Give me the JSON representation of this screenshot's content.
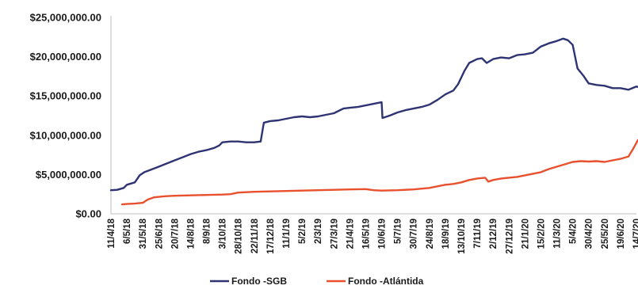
{
  "chart_data": {
    "type": "line",
    "title": "",
    "xlabel": "",
    "ylabel": "",
    "ylim": [
      0,
      25000000
    ],
    "y_ticks": [
      "$0.00",
      "$5,000,000.00",
      "$10,000,000.00",
      "$15,000,000.00",
      "$20,000,000.00",
      "$25,000,000.00"
    ],
    "x_ticks": [
      "11/4/18",
      "6/5/18",
      "31/5/18",
      "25/6/18",
      "20/7/18",
      "14/8/18",
      "8/9/18",
      "3/10/18",
      "28/10/18",
      "22/11/18",
      "17/12/18",
      "11/1/19",
      "5/2/19",
      "2/3/19",
      "27/3/19",
      "21/4/19",
      "16/5/19",
      "10/6/19",
      "5/7/19",
      "30/7/19",
      "24/8/19",
      "18/9/19",
      "13/10/19",
      "7/11/19",
      "2/12/19",
      "27/12/19",
      "21/1/20",
      "15/2/20",
      "11/3/20",
      "5/4/20",
      "30/4/20",
      "25/5/20",
      "19/6/20",
      "14/7/20"
    ],
    "grid": false,
    "legend_position": "bottom",
    "series": [
      {
        "name": "Fondo -SGB",
        "color": "#2e3473",
        "points": [
          [
            0,
            3000000
          ],
          [
            0.4,
            3050000
          ],
          [
            0.8,
            3300000
          ],
          [
            1.0,
            3700000
          ],
          [
            1.5,
            4000000
          ],
          [
            1.8,
            4900000
          ],
          [
            2.1,
            5300000
          ],
          [
            2.5,
            5600000
          ],
          [
            3.0,
            6000000
          ],
          [
            3.5,
            6400000
          ],
          [
            4.0,
            6800000
          ],
          [
            4.5,
            7200000
          ],
          [
            5.0,
            7600000
          ],
          [
            5.5,
            7900000
          ],
          [
            6.0,
            8100000
          ],
          [
            6.5,
            8400000
          ],
          [
            6.8,
            8700000
          ],
          [
            7.0,
            9100000
          ],
          [
            7.5,
            9200000
          ],
          [
            8.0,
            9200000
          ],
          [
            8.5,
            9100000
          ],
          [
            9.0,
            9100000
          ],
          [
            9.4,
            9200000
          ],
          [
            9.6,
            11600000
          ],
          [
            10.0,
            11800000
          ],
          [
            10.5,
            11900000
          ],
          [
            11.0,
            12100000
          ],
          [
            11.5,
            12300000
          ],
          [
            12.0,
            12400000
          ],
          [
            12.5,
            12300000
          ],
          [
            13.0,
            12400000
          ],
          [
            13.5,
            12600000
          ],
          [
            14.0,
            12800000
          ],
          [
            14.3,
            13100000
          ],
          [
            14.6,
            13400000
          ],
          [
            15.0,
            13500000
          ],
          [
            15.5,
            13600000
          ],
          [
            16.0,
            13800000
          ],
          [
            16.5,
            14000000
          ],
          [
            17.0,
            14200000
          ],
          [
            17.05,
            12200000
          ],
          [
            17.5,
            12500000
          ],
          [
            18.0,
            12900000
          ],
          [
            18.5,
            13200000
          ],
          [
            19.0,
            13400000
          ],
          [
            19.5,
            13600000
          ],
          [
            20.0,
            13900000
          ],
          [
            20.5,
            14500000
          ],
          [
            21.0,
            15200000
          ],
          [
            21.5,
            15700000
          ],
          [
            21.8,
            16500000
          ],
          [
            22.2,
            18200000
          ],
          [
            22.5,
            19200000
          ],
          [
            23.0,
            19700000
          ],
          [
            23.3,
            19800000
          ],
          [
            23.6,
            19200000
          ],
          [
            24.0,
            19700000
          ],
          [
            24.5,
            19900000
          ],
          [
            25.0,
            19800000
          ],
          [
            25.5,
            20200000
          ],
          [
            26.0,
            20300000
          ],
          [
            26.5,
            20500000
          ],
          [
            27.0,
            21300000
          ],
          [
            27.5,
            21700000
          ],
          [
            28.0,
            22000000
          ],
          [
            28.4,
            22300000
          ],
          [
            28.7,
            22100000
          ],
          [
            29.0,
            21500000
          ],
          [
            29.3,
            18500000
          ],
          [
            29.5,
            18000000
          ],
          [
            29.7,
            17500000
          ],
          [
            30.0,
            16600000
          ],
          [
            30.5,
            16400000
          ],
          [
            31.0,
            16300000
          ],
          [
            31.5,
            16000000
          ],
          [
            32.0,
            16000000
          ],
          [
            32.5,
            15800000
          ],
          [
            33.0,
            16200000
          ],
          [
            33.5,
            15900000
          ],
          [
            34.0,
            15900000
          ]
        ]
      },
      {
        "name": "Fondo -Atlántida",
        "color": "#e8502e",
        "points": [
          [
            0.7,
            1200000
          ],
          [
            1.0,
            1250000
          ],
          [
            1.5,
            1300000
          ],
          [
            2.0,
            1400000
          ],
          [
            2.3,
            1800000
          ],
          [
            2.7,
            2100000
          ],
          [
            3.2,
            2200000
          ],
          [
            3.5,
            2250000
          ],
          [
            4.0,
            2300000
          ],
          [
            5.0,
            2350000
          ],
          [
            6.0,
            2400000
          ],
          [
            7.0,
            2450000
          ],
          [
            7.5,
            2500000
          ],
          [
            8.0,
            2700000
          ],
          [
            9.0,
            2800000
          ],
          [
            10.0,
            2850000
          ],
          [
            11.0,
            2900000
          ],
          [
            12.0,
            2950000
          ],
          [
            13.0,
            3000000
          ],
          [
            14.0,
            3050000
          ],
          [
            15.0,
            3100000
          ],
          [
            16.0,
            3150000
          ],
          [
            16.5,
            3000000
          ],
          [
            17.0,
            2950000
          ],
          [
            18.0,
            3000000
          ],
          [
            19.0,
            3100000
          ],
          [
            20.0,
            3300000
          ],
          [
            20.5,
            3500000
          ],
          [
            21.0,
            3700000
          ],
          [
            21.5,
            3800000
          ],
          [
            22.0,
            4000000
          ],
          [
            22.5,
            4300000
          ],
          [
            23.0,
            4500000
          ],
          [
            23.5,
            4600000
          ],
          [
            23.7,
            4100000
          ],
          [
            24.0,
            4300000
          ],
          [
            24.5,
            4500000
          ],
          [
            25.0,
            4600000
          ],
          [
            25.5,
            4700000
          ],
          [
            26.0,
            4900000
          ],
          [
            26.5,
            5100000
          ],
          [
            27.0,
            5300000
          ],
          [
            27.5,
            5700000
          ],
          [
            28.0,
            6000000
          ],
          [
            28.5,
            6300000
          ],
          [
            29.0,
            6600000
          ],
          [
            29.5,
            6700000
          ],
          [
            30.0,
            6650000
          ],
          [
            30.5,
            6700000
          ],
          [
            31.0,
            6600000
          ],
          [
            31.5,
            6800000
          ],
          [
            32.0,
            7000000
          ],
          [
            32.5,
            7300000
          ],
          [
            32.8,
            8300000
          ],
          [
            33.1,
            9400000
          ],
          [
            33.3,
            8500000
          ],
          [
            33.6,
            8700000
          ],
          [
            34.0,
            8800000
          ]
        ]
      }
    ]
  }
}
